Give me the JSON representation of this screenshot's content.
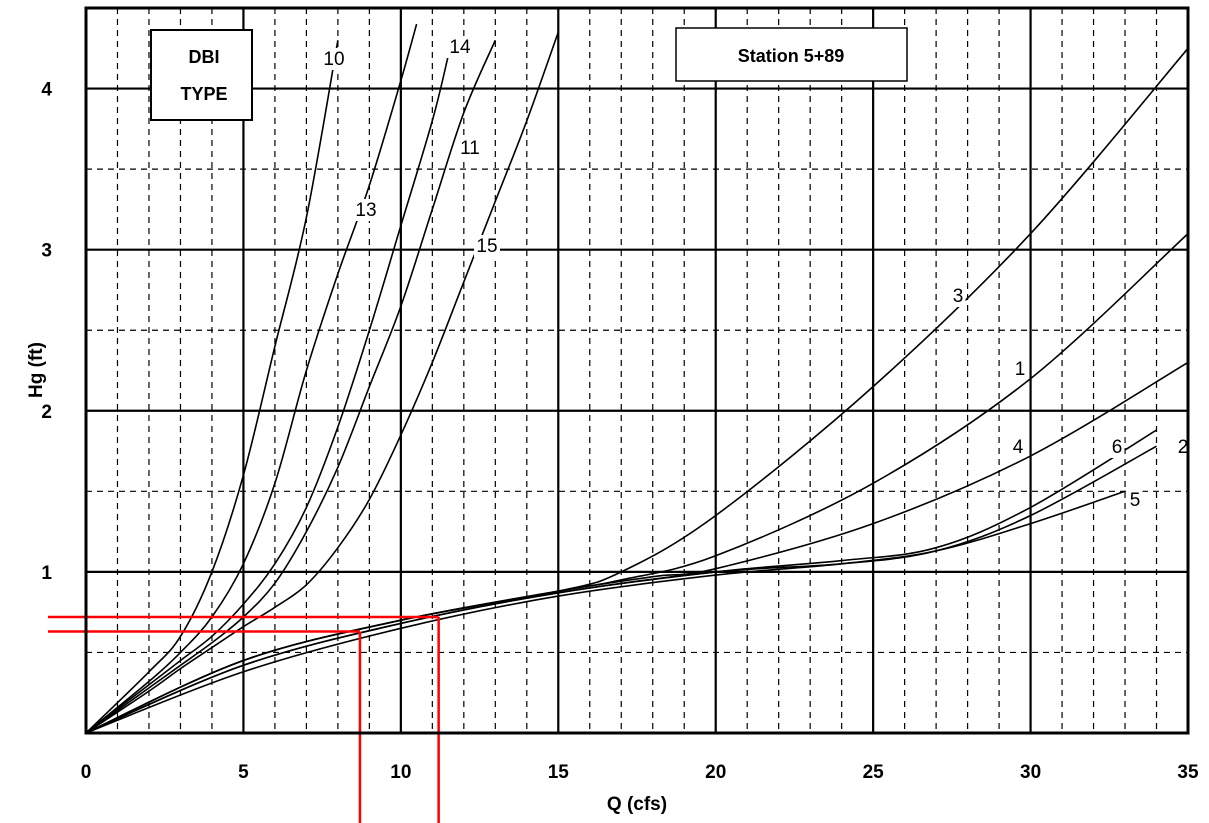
{
  "chart_data": {
    "type": "line",
    "title": "",
    "xlabel": "Q (cfs)",
    "ylabel": "Hg (ft)",
    "xlim": [
      0,
      35
    ],
    "ylim": [
      0,
      4.5
    ],
    "x_ticks": [
      "0",
      "5",
      "10",
      "15",
      "20",
      "25",
      "30",
      "35"
    ],
    "y_ticks": [
      "1",
      "2",
      "3",
      "4"
    ],
    "grid": true,
    "legend_box": [
      "DBI",
      "TYPE"
    ],
    "station_label": "Station 5+89",
    "series": [
      {
        "name": "10",
        "x": [
          0,
          2,
          3,
          4,
          5,
          6,
          7,
          8
        ],
        "y": [
          0,
          0.38,
          0.6,
          1.0,
          1.6,
          2.4,
          3.2,
          4.3
        ]
      },
      {
        "name": "13",
        "x": [
          0,
          2,
          3,
          4,
          5,
          6,
          7,
          8,
          9,
          10,
          10.5
        ],
        "y": [
          0,
          0.32,
          0.5,
          0.72,
          1.05,
          1.55,
          2.25,
          2.85,
          3.4,
          4.05,
          4.4
        ]
      },
      {
        "name": "14",
        "x": [
          0,
          2,
          3,
          4,
          5,
          6,
          7,
          8,
          9,
          10,
          11,
          11.5
        ],
        "y": [
          0,
          0.3,
          0.45,
          0.6,
          0.8,
          1.05,
          1.4,
          1.9,
          2.5,
          3.15,
          3.8,
          4.2
        ]
      },
      {
        "name": "11",
        "x": [
          0,
          2,
          3,
          4,
          5,
          6,
          7,
          8,
          9,
          10,
          11,
          12,
          13
        ],
        "y": [
          0,
          0.28,
          0.42,
          0.56,
          0.72,
          0.93,
          1.25,
          1.65,
          2.15,
          2.65,
          3.25,
          3.85,
          4.3
        ]
      },
      {
        "name": "15",
        "x": [
          0,
          2,
          3,
          4,
          5,
          6,
          7,
          8,
          9,
          10,
          11,
          12,
          13,
          14,
          15
        ],
        "y": [
          0,
          0.26,
          0.4,
          0.53,
          0.66,
          0.78,
          0.92,
          1.15,
          1.45,
          1.85,
          2.3,
          2.8,
          3.3,
          3.8,
          4.35
        ]
      },
      {
        "name": "3",
        "x": [
          0,
          5,
          10,
          15,
          17,
          20,
          25,
          30,
          35
        ],
        "y": [
          0,
          0.45,
          0.7,
          0.88,
          1.0,
          1.35,
          2.15,
          3.1,
          4.25
        ]
      },
      {
        "name": "1",
        "x": [
          0,
          5,
          10,
          15,
          17,
          20,
          25,
          30,
          35
        ],
        "y": [
          0,
          0.45,
          0.7,
          0.88,
          0.95,
          1.1,
          1.55,
          2.2,
          3.1
        ]
      },
      {
        "name": "4",
        "x": [
          0,
          5,
          10,
          15,
          18,
          20,
          25,
          30,
          35
        ],
        "y": [
          0,
          0.45,
          0.7,
          0.88,
          0.97,
          1.02,
          1.3,
          1.72,
          2.3
        ]
      },
      {
        "name": "6",
        "x": [
          0,
          5,
          10,
          15,
          20,
          24,
          27,
          30,
          34
        ],
        "y": [
          0,
          0.42,
          0.68,
          0.87,
          1.0,
          1.07,
          1.15,
          1.4,
          1.88
        ]
      },
      {
        "name": "2",
        "x": [
          0,
          5,
          10,
          15,
          20,
          24,
          27,
          30,
          34
        ],
        "y": [
          0,
          0.42,
          0.68,
          0.87,
          1.0,
          1.05,
          1.13,
          1.35,
          1.78
        ]
      },
      {
        "name": "5",
        "x": [
          0,
          5,
          10,
          15,
          20,
          24,
          27,
          30,
          33
        ],
        "y": [
          0,
          0.38,
          0.65,
          0.85,
          0.98,
          1.05,
          1.13,
          1.3,
          1.5
        ]
      }
    ],
    "annotations": [
      {
        "type": "reference",
        "color": "#ff0000",
        "q": 8.7,
        "hg": 0.63
      },
      {
        "type": "reference",
        "color": "#ff0000",
        "q": 11.2,
        "hg": 0.72
      }
    ]
  }
}
